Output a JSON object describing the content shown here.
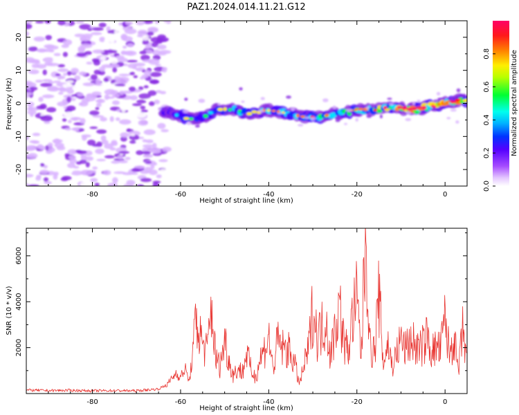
{
  "title": "PAZ1.2024.014.11.21.G12",
  "chart_data": [
    {
      "type": "heatmap",
      "xlabel": "Height of straight line (km)",
      "ylabel": "Frequency (Hz)",
      "xlim": [
        -95,
        5
      ],
      "ylim": [
        -25,
        25
      ],
      "xticks": [
        -80,
        -60,
        -40,
        -20,
        0
      ],
      "yticks": [
        -20,
        -10,
        0,
        10,
        20
      ],
      "colorbar": {
        "label": "Normalized spectral amplitude",
        "range": [
          0,
          1
        ],
        "ticks": [
          "0.0",
          "0.2",
          "0.4",
          "0.6",
          "0.8"
        ],
        "tick_values": [
          0.0,
          0.2,
          0.4,
          0.6,
          0.8
        ],
        "colormap": [
          "#ffffff",
          "#d9b3ff",
          "#8a2be2",
          "#4000ff",
          "#0033ff",
          "#00e5ff",
          "#00ff33",
          "#ffee00",
          "#ff7f00",
          "#ff0000",
          "#ff0066"
        ]
      },
      "ridge": {
        "x": [
          -63,
          -60,
          -56,
          -52,
          -48,
          -44,
          -40,
          -36,
          -32,
          -28,
          -24,
          -20,
          -16,
          -12,
          -8,
          -4,
          0,
          4
        ],
        "frequency": [
          -3,
          -4,
          -5,
          -2,
          -2,
          -3,
          -2,
          -3,
          -4,
          -4,
          -3,
          -2,
          -2,
          -1,
          -2,
          -1,
          0,
          1
        ],
        "amplitude": [
          0.35,
          0.4,
          0.4,
          0.38,
          0.45,
          0.45,
          0.55,
          0.5,
          0.55,
          0.55,
          0.6,
          0.6,
          0.55,
          0.85,
          0.8,
          0.75,
          0.8,
          0.7
        ]
      },
      "noise_region": {
        "x": [
          -95,
          -63
        ],
        "amplitude": 0.2
      }
    },
    {
      "type": "line",
      "xlabel": "Height of straight line (km)",
      "ylabel": "SNR (10 * v/v)",
      "xlim": [
        -95,
        5
      ],
      "ylim": [
        0,
        7200
      ],
      "xticks": [
        -80,
        -60,
        -40,
        -20,
        0
      ],
      "yticks": [
        2000,
        4000,
        6000
      ],
      "color": "#e8322e",
      "series": [
        {
          "x": [
            -95,
            -90,
            -85,
            -80,
            -75,
            -70,
            -65,
            -63,
            -61,
            -60,
            -59,
            -58,
            -57,
            -56.5,
            -56,
            -55,
            -54,
            -53,
            -52,
            -51,
            -50,
            -49,
            -48,
            -47,
            -46,
            -45,
            -44,
            -43,
            -42,
            -41,
            -40,
            -39,
            -38,
            -37,
            -36,
            -35,
            -34,
            -33,
            -32,
            -31,
            -30,
            -29,
            -28,
            -27,
            -26,
            -25,
            -24,
            -23,
            -22,
            -21,
            -20,
            -19,
            -18,
            -17,
            -16,
            -15,
            -14,
            -13,
            -12,
            -11,
            -10,
            -9,
            -8,
            -7,
            -6,
            -5,
            -4,
            -3,
            -2,
            -1,
            0,
            1,
            2,
            3,
            4,
            5
          ],
          "y": [
            150,
            130,
            140,
            120,
            130,
            120,
            200,
            400,
            900,
            700,
            1100,
            500,
            2200,
            3300,
            2800,
            2200,
            1800,
            3800,
            1500,
            1200,
            2400,
            1400,
            800,
            1100,
            900,
            1800,
            1000,
            700,
            1500,
            1900,
            2500,
            1000,
            2300,
            2000,
            1900,
            1800,
            1200,
            400,
            1200,
            1900,
            3700,
            2500,
            2800,
            3300,
            1600,
            2800,
            3900,
            2300,
            1800,
            3300,
            4100,
            1600,
            7200,
            2000,
            1800,
            4300,
            1300,
            2200,
            1200,
            1700,
            2400,
            1900,
            2300,
            2200,
            1900,
            2100,
            2500,
            1800,
            2000,
            1900,
            3300,
            1700,
            2500,
            900,
            2700,
            1600
          ]
        }
      ]
    }
  ]
}
